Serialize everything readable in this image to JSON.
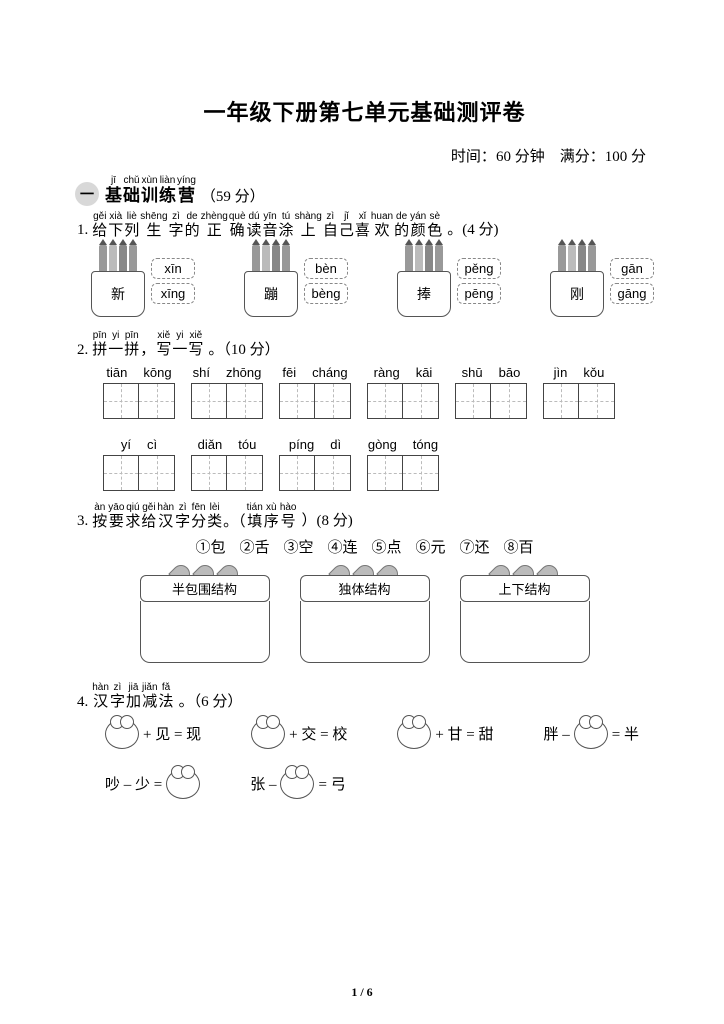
{
  "title": "一年级下册第七单元基础测评卷",
  "meta": {
    "time_label": "时间：",
    "time_value": "60 分钟",
    "score_label": "满分：",
    "score_value": "100 分"
  },
  "section1": {
    "num": "一",
    "pinyin": [
      "jī",
      "chǔ",
      "xùn",
      "liàn",
      "yíng"
    ],
    "hanzi": [
      "基",
      "础",
      "训",
      "练",
      "营"
    ],
    "score": "（59 分）"
  },
  "q1": {
    "num": "1.",
    "py": [
      "gěi",
      "xià",
      "liè",
      "shēng",
      "zì",
      "de",
      "zhèng",
      "què",
      "dú",
      "yīn",
      "tú",
      "shàng",
      "zì",
      "jǐ",
      "xǐ",
      "huan",
      "de",
      "yán",
      "sè"
    ],
    "hz": [
      "给",
      "下",
      "列",
      "生",
      "字",
      "的",
      "正",
      "确",
      "读",
      "音",
      "涂",
      "上",
      "自",
      "己",
      "喜",
      "欢",
      "的",
      "颜",
      "色"
    ],
    "tail": "。(4 分)",
    "cups": [
      {
        "char": "新",
        "opts": [
          "xīn",
          "xīng"
        ]
      },
      {
        "char": "蹦",
        "opts": [
          "bèn",
          "bèng"
        ]
      },
      {
        "char": "捧",
        "opts": [
          "pěng",
          "pēng"
        ]
      },
      {
        "char": "刚",
        "opts": [
          "gān",
          "gāng"
        ]
      }
    ]
  },
  "q2": {
    "num": "2.",
    "py": [
      "pīn",
      "yi",
      "pīn",
      "",
      "xiě",
      "yi",
      "xiě"
    ],
    "hz": [
      "拼",
      "一",
      "拼",
      "，",
      "写",
      "一",
      "写"
    ],
    "tail": "。（10 分）",
    "items": [
      [
        "tiān",
        "kōng"
      ],
      [
        "shí",
        "zhōng"
      ],
      [
        "fēi",
        "cháng"
      ],
      [
        "ràng",
        "kāi"
      ],
      [
        "shū",
        "bāo"
      ],
      [
        "jìn",
        "kǒu"
      ],
      [
        "yí",
        "cì"
      ],
      [
        "diǎn",
        "tóu"
      ],
      [
        "píng",
        "dì"
      ],
      [
        "gòng",
        "tóng"
      ]
    ]
  },
  "q3": {
    "num": "3.",
    "py": [
      "àn",
      "yāo",
      "qiú",
      "gěi",
      "hàn",
      "zì",
      "fēn",
      "lèi",
      "",
      "tián",
      "xù",
      "hào"
    ],
    "hz": [
      "按",
      "要",
      "求",
      "给",
      "汉",
      "字",
      "分",
      "类",
      "。（",
      "填",
      "序",
      "号"
    ],
    "tail": "）(8 分)",
    "choices": [
      "①包",
      "②舌",
      "③空",
      "④连",
      "⑤点",
      "⑥元",
      "⑦还",
      "⑧百"
    ],
    "boxes": [
      "半包围结构",
      "独体结构",
      "上下结构"
    ]
  },
  "q4": {
    "num": "4.",
    "py": [
      "hàn",
      "zì",
      "jiā",
      "jiǎn",
      "fǎ"
    ],
    "hz": [
      "汉",
      "字",
      "加",
      "减",
      "法"
    ],
    "tail": "。（6 分）",
    "eqs": [
      {
        "pre": "",
        "a": "+ 见 = 现"
      },
      {
        "pre": "",
        "a": "+ 交 = 校"
      },
      {
        "pre": "",
        "a": "+ 甘 = 甜"
      },
      {
        "pre": "胖 – ",
        "a": " = 半"
      },
      {
        "pre": "吵 – 少 = ",
        "a": ""
      },
      {
        "pre": "张 – ",
        "a": " = 弓"
      }
    ]
  },
  "page": "1 / 6"
}
